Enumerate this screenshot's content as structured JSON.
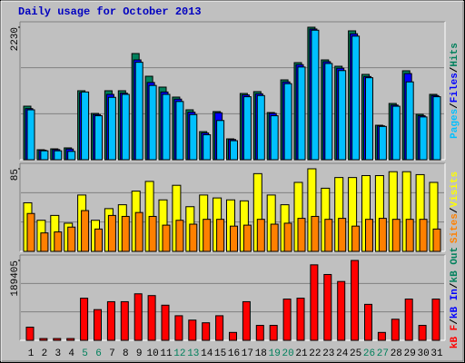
{
  "chart_data": [
    {
      "type": "bar",
      "title": "Daily usage for October 2013",
      "series": [
        {
          "name": "Hits",
          "color": "#00805c",
          "values": [
            901,
            168,
            183,
            199,
            1161,
            779,
            1161,
            1161,
            1787,
            1405,
            1222,
            1054,
            840,
            473,
            810,
            351,
            1115,
            1146,
            794,
            1344,
            1634,
            2230,
            1680,
            1573,
            2169,
            1436,
            580,
            947,
            1497,
            764,
            1100
          ]
        },
        {
          "name": "Files",
          "color": "#0000ff",
          "values": [
            860,
            160,
            170,
            180,
            1130,
            760,
            1100,
            1120,
            1680,
            1300,
            1140,
            1020,
            800,
            450,
            790,
            340,
            1090,
            1110,
            780,
            1310,
            1600,
            2200,
            1650,
            1540,
            2120,
            1400,
            570,
            920,
            1450,
            740,
            1080
          ]
        },
        {
          "name": "Pages",
          "color": "#00c0ff",
          "values": [
            840,
            150,
            150,
            140,
            1140,
            740,
            1050,
            1100,
            1640,
            1250,
            1100,
            980,
            760,
            420,
            660,
            320,
            1060,
            1080,
            740,
            1280,
            1560,
            2180,
            1620,
            1500,
            2080,
            1380,
            560,
            900,
            1310,
            720,
            1060
          ]
        }
      ],
      "ylim": [
        0,
        2230
      ],
      "yticks": [
        2230
      ],
      "legend_separator": "/"
    },
    {
      "type": "bar",
      "series": [
        {
          "name": "Visits",
          "color": "#ffff00",
          "values": [
            50,
            32,
            37,
            29,
            58,
            32,
            44,
            48,
            62,
            72,
            53,
            68,
            46,
            58,
            55,
            53,
            52,
            80,
            58,
            48,
            71,
            85,
            65,
            76,
            76,
            78,
            78,
            82,
            82,
            79,
            71
          ]
        },
        {
          "name": "Sites",
          "color": "#ff8000",
          "values": [
            39,
            19,
            20,
            25,
            42,
            23,
            37,
            36,
            40,
            36,
            27,
            32,
            28,
            33,
            33,
            26,
            27,
            33,
            28,
            29,
            34,
            36,
            33,
            34,
            26,
            33,
            34,
            33,
            33,
            33,
            23
          ]
        }
      ],
      "ylim": [
        0,
        85
      ],
      "yticks": [
        85
      ],
      "legend_separator": "/"
    },
    {
      "type": "bar",
      "series": [
        {
          "name": "kB F",
          "color": "#ff0000",
          "values": [
            31200,
            4200,
            4200,
            4200,
            99900,
            72800,
            91600,
            91600,
            110300,
            106100,
            83300,
            58300,
            47900,
            41600,
            58300,
            18700,
            91600,
            35400,
            35400,
            97800,
            99900,
            179000,
            156100,
            139500,
            189405,
            85300,
            18700,
            50000,
            97800,
            35400,
            97800
          ]
        }
      ],
      "other_legend": [
        {
          "name": "kB In",
          "color": "#0000ff"
        },
        {
          "name": "kB Out",
          "color": "#00805c"
        }
      ],
      "ylim": [
        0,
        189405
      ],
      "yticks": [
        189405
      ],
      "legend_separator": "/",
      "categories": [
        "1",
        "2",
        "3",
        "4",
        "5",
        "6",
        "7",
        "8",
        "9",
        "10",
        "11",
        "12",
        "13",
        "14",
        "15",
        "16",
        "17",
        "18",
        "19",
        "20",
        "21",
        "22",
        "23",
        "24",
        "25",
        "26",
        "27",
        "28",
        "29",
        "30",
        "31"
      ],
      "category_colors": [
        "#000000",
        "#000000",
        "#000000",
        "#000000",
        "#00805c",
        "#00805c",
        "#000000",
        "#000000",
        "#000000",
        "#000000",
        "#000000",
        "#00805c",
        "#00805c",
        "#000000",
        "#000000",
        "#000000",
        "#000000",
        "#000000",
        "#00805c",
        "#00805c",
        "#000000",
        "#000000",
        "#000000",
        "#000000",
        "#000000",
        "#00805c",
        "#00805c",
        "#000000",
        "#000000",
        "#000000",
        "#000000"
      ]
    }
  ]
}
